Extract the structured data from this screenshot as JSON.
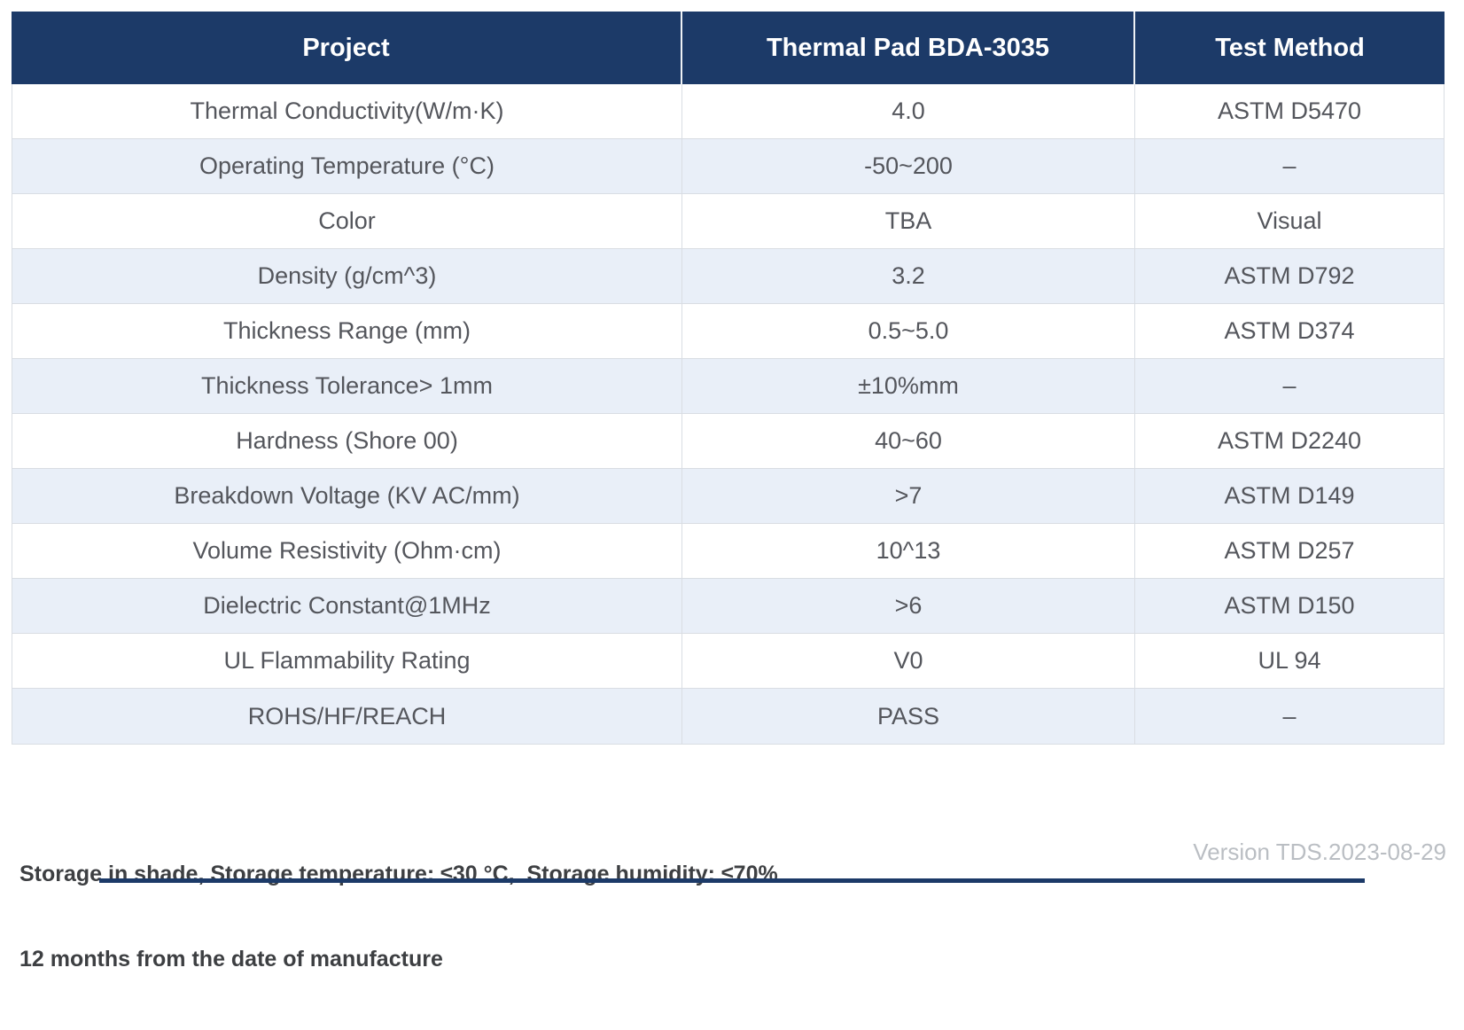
{
  "colors": {
    "header_bg": "#1c3a68",
    "row_alt_bg": "#e9eff8",
    "border": "#d9dde3",
    "header_text": "#ffffff",
    "body_text": "#54565c",
    "note_text": "#3d3f42",
    "version_text": "#babec3"
  },
  "table": {
    "columns": [
      {
        "key": "project",
        "label": "Project"
      },
      {
        "key": "value",
        "label": "Thermal Pad BDA-3035"
      },
      {
        "key": "method",
        "label": "Test Method"
      }
    ],
    "rows": [
      {
        "project": "Thermal Conductivity(W/m·K)",
        "value": "4.0",
        "method": "ASTM D5470"
      },
      {
        "project": "Operating Temperature (°C)",
        "value": "-50~200",
        "method": "–"
      },
      {
        "project": "Color",
        "value": "TBA",
        "method": "Visual"
      },
      {
        "project": "Density (g/cm^3)",
        "value": "3.2",
        "method": "ASTM D792"
      },
      {
        "project": "Thickness Range (mm)",
        "value": "0.5~5.0",
        "method": "ASTM D374"
      },
      {
        "project": "Thickness Tolerance> 1mm",
        "value": "±10%mm",
        "method": "–"
      },
      {
        "project": "Hardness (Shore 00)",
        "value": "40~60",
        "method": "ASTM D2240"
      },
      {
        "project": "Breakdown Voltage (KV AC/mm)",
        "value": ">7",
        "method": "ASTM D149"
      },
      {
        "project": "Volume Resistivity (Ohm·cm)",
        "value": "10^13",
        "method": "ASTM D257"
      },
      {
        "project": "Dielectric Constant@1MHz",
        "value": ">6",
        "method": "ASTM D150"
      },
      {
        "project": "UL Flammability Rating",
        "value": "V0",
        "method": "UL 94"
      },
      {
        "project": "ROHS/HF/REACH",
        "value": "PASS",
        "method": "–"
      }
    ]
  },
  "footer": {
    "line1": "Storage in shade, Storage temperature: ≤30 °C,  Storage humidity: ≤70%",
    "line2": "12 months from the date of manufacture",
    "version": "Version TDS.2023-08-29"
  }
}
